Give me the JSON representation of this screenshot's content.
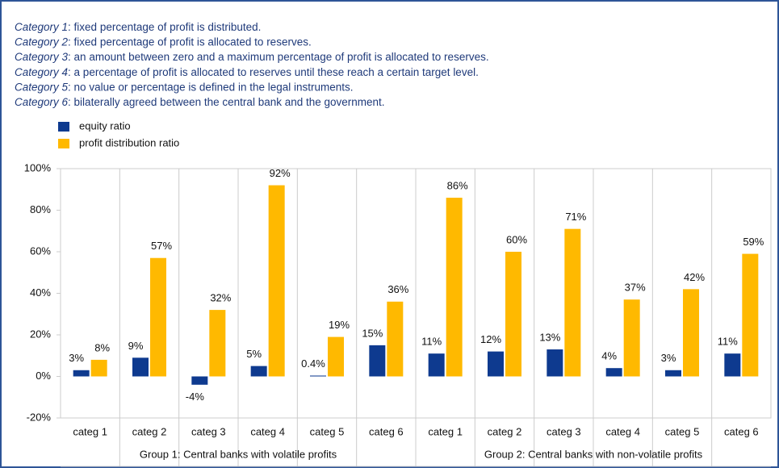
{
  "chart_data": {
    "type": "bar",
    "notes": [
      {
        "label": "Category 1",
        "text": ": fixed percentage of profit is distributed."
      },
      {
        "label": "Category 2",
        "text": ": fixed percentage of profit is allocated to reserves."
      },
      {
        "label": "Category 3",
        "text": ": an amount between zero and a maximum percentage of profit is allocated to reserves."
      },
      {
        "label": "Category 4",
        "text": ": a percentage of profit is allocated to reserves until these reach a certain target level."
      },
      {
        "label": "Category 5",
        "text": ": no value or percentage is defined in the legal instruments."
      },
      {
        "label": "Category 6",
        "text": ": bilaterally agreed between the central bank and the government."
      }
    ],
    "categories": [
      "categ 1",
      "categ 2",
      "categ 3",
      "categ 4",
      "categ 5",
      "categ 6",
      "categ 1",
      "categ 2",
      "categ 3",
      "categ 4",
      "categ 5",
      "categ 6"
    ],
    "groups": [
      {
        "label": "Group 1: Central banks with volatile profits",
        "span": [
          0,
          5
        ]
      },
      {
        "label": "Group 2: Central banks with non-volatile profits",
        "span": [
          6,
          11
        ]
      }
    ],
    "series": [
      {
        "name": "equity ratio",
        "color": "#0e3a8f",
        "values": [
          3,
          9,
          -4,
          5,
          0.4,
          15,
          11,
          12,
          13,
          4,
          3,
          11
        ],
        "value_labels": [
          "3%",
          "9%",
          "-4%",
          "5%",
          "0.4%",
          "15%",
          "11%",
          "12%",
          "13%",
          "4%",
          "3%",
          "11%"
        ]
      },
      {
        "name": "profit distribution ratio",
        "color": "#ffb900",
        "values": [
          8,
          57,
          32,
          92,
          19,
          36,
          86,
          60,
          71,
          37,
          42,
          59
        ],
        "value_labels": [
          "8%",
          "57%",
          "32%",
          "92%",
          "19%",
          "36%",
          "86%",
          "60%",
          "71%",
          "37%",
          "42%",
          "59%"
        ]
      }
    ],
    "ylim": [
      -20,
      100
    ],
    "yticks": [
      {
        "value": -20,
        "label": "-20%"
      },
      {
        "value": 0,
        "label": "0%"
      },
      {
        "value": 20,
        "label": "20%"
      },
      {
        "value": 40,
        "label": "40%"
      },
      {
        "value": 60,
        "label": "60%"
      },
      {
        "value": 80,
        "label": "80%"
      },
      {
        "value": 100,
        "label": "100%"
      }
    ],
    "grid": false
  }
}
